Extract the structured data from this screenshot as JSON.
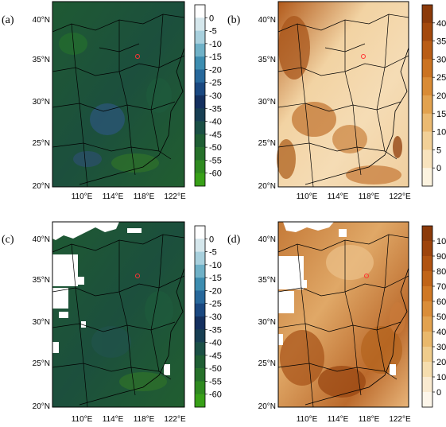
{
  "panels": [
    {
      "label": "(a)",
      "colorbar": {
        "ticks": [
          "0",
          "-5",
          "-10",
          "-15",
          "-20",
          "-25",
          "-30",
          "-35",
          "-40",
          "-45",
          "-50",
          "-55",
          "-60"
        ],
        "colors": [
          "#ffffff",
          "#d5e7ec",
          "#a8d0dd",
          "#6fb1c7",
          "#3d8db0",
          "#27689b",
          "#1a4880",
          "#14305f",
          "#173f53",
          "#1b5045",
          "#1f5e34",
          "#26702a",
          "#2f8a20",
          "#38a018"
        ]
      }
    },
    {
      "label": "(b)",
      "colorbar": {
        "ticks": [
          "40",
          "35",
          "30",
          "25",
          "20",
          "15",
          "10",
          "5",
          "0"
        ],
        "colors": [
          "#8b3a0a",
          "#a3490d",
          "#b95d15",
          "#cb7321",
          "#d98b35",
          "#e2a24f",
          "#ebba72",
          "#f2d097",
          "#f8e3bd",
          "#fcf3df"
        ]
      }
    },
    {
      "label": "(c)",
      "colorbar": {
        "ticks": [
          "0",
          "-5",
          "-10",
          "-15",
          "-20",
          "-25",
          "-30",
          "-35",
          "-40",
          "-45",
          "-50",
          "-55",
          "-60"
        ],
        "colors": [
          "#ffffff",
          "#d5e7ec",
          "#a8d0dd",
          "#6fb1c7",
          "#3d8db0",
          "#27689b",
          "#1a4880",
          "#14305f",
          "#173f53",
          "#1b5045",
          "#1f5e34",
          "#26702a",
          "#2f8a20",
          "#38a018"
        ]
      }
    },
    {
      "label": "(d)",
      "colorbar": {
        "ticks": [
          "100",
          "90",
          "80",
          "70",
          "60",
          "50",
          "40",
          "30",
          "20",
          "10",
          "0"
        ],
        "colors": [
          "#8b3a0a",
          "#9d440c",
          "#b05311",
          "#c06418",
          "#cf7825",
          "#da8d38",
          "#e2a24f",
          "#e9b86b",
          "#efcc8c",
          "#f5ddae",
          "#f9ead0",
          "#fdf6ea"
        ]
      }
    }
  ],
  "axes": {
    "lat_labels": [
      "40°N",
      "35°N",
      "30°N",
      "25°N",
      "20°N"
    ],
    "lon_labels": [
      "110°E",
      "114°E",
      "118°E",
      "122°E"
    ]
  },
  "colors": {
    "marker": "#ff3333",
    "boundary": "#000000",
    "frame": "#000000"
  }
}
